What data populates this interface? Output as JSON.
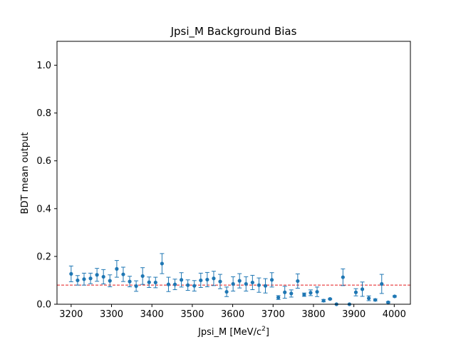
{
  "chart_data": {
    "type": "scatter",
    "title": "Jpsi_M Background Bias",
    "xlabel": "Jpsi_M [MeV/c",
    "xlabel_sup": "2",
    "xlabel_end": "]",
    "ylabel": "BDT mean output",
    "xlim": [
      3165,
      4040
    ],
    "ylim": [
      0,
      1.1
    ],
    "xticks": [
      3200,
      3300,
      3400,
      3500,
      3600,
      3700,
      3800,
      3900,
      4000
    ],
    "yticks": [
      0.0,
      0.2,
      0.4,
      0.6,
      0.8,
      1.0
    ],
    "ytick_labels": [
      "0.0",
      "0.2",
      "0.4",
      "0.6",
      "0.8",
      "1.0"
    ],
    "reference_line": {
      "y": 0.08,
      "color": "#e41a1c",
      "style": "dashed"
    },
    "marker_color": "#1f77b4",
    "series": [
      {
        "x": [
          3200,
          3216,
          3232,
          3248,
          3264,
          3280,
          3296,
          3313,
          3329,
          3345,
          3361,
          3377,
          3393,
          3409,
          3425,
          3441,
          3457,
          3473,
          3489,
          3505,
          3521,
          3537,
          3553,
          3569,
          3585,
          3601,
          3617,
          3633,
          3649,
          3665,
          3681,
          3697,
          3713,
          3729,
          3745,
          3761,
          3777,
          3793,
          3809,
          3825,
          3841,
          3857,
          3873,
          3889,
          3905,
          3921,
          3937,
          3953,
          3969,
          3985,
          4001
        ],
        "y": [
          0.127,
          0.1,
          0.105,
          0.108,
          0.123,
          0.115,
          0.098,
          0.148,
          0.125,
          0.095,
          0.076,
          0.118,
          0.092,
          0.091,
          0.17,
          0.083,
          0.083,
          0.102,
          0.08,
          0.077,
          0.1,
          0.103,
          0.108,
          0.095,
          0.052,
          0.085,
          0.098,
          0.085,
          0.091,
          0.08,
          0.077,
          0.102,
          0.028,
          0.05,
          0.045,
          0.097,
          0.04,
          0.048,
          0.052,
          0.015,
          0.022,
          0.0,
          0.113,
          0.0,
          0.05,
          0.063,
          0.025,
          0.018,
          0.085,
          0.008,
          0.033
        ],
        "err": [
          0.033,
          0.02,
          0.025,
          0.022,
          0.027,
          0.03,
          0.025,
          0.035,
          0.03,
          0.022,
          0.022,
          0.035,
          0.022,
          0.022,
          0.042,
          0.03,
          0.022,
          0.03,
          0.022,
          0.022,
          0.03,
          0.03,
          0.03,
          0.03,
          0.02,
          0.03,
          0.03,
          0.03,
          0.03,
          0.03,
          0.03,
          0.03,
          0.008,
          0.025,
          0.015,
          0.03,
          0.007,
          0.012,
          0.02,
          0.005,
          0.003,
          0.0,
          0.035,
          0.0,
          0.015,
          0.03,
          0.01,
          0.004,
          0.04,
          0.003,
          0.003
        ]
      }
    ]
  }
}
